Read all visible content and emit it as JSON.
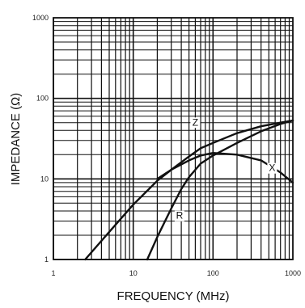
{
  "chart_data": {
    "type": "line",
    "title": "",
    "xlabel": "FREQUENCY (MHz)",
    "ylabel": "IMPEDANCE (Ω)",
    "xscale": "log",
    "yscale": "log",
    "xlim": [
      1,
      1000
    ],
    "ylim": [
      1,
      1000
    ],
    "grid": true,
    "legend": "none",
    "x_ticks": [
      "1",
      "10",
      "100",
      "1000"
    ],
    "y_ticks": [
      "1",
      "10",
      "100",
      "1000"
    ],
    "line_color": "#111111",
    "series": [
      {
        "name": "Z",
        "x": [
          2.5,
          5,
          10,
          20,
          30,
          50,
          70,
          100,
          200,
          400,
          700,
          1000
        ],
        "y": [
          1.0,
          2.2,
          4.8,
          9.5,
          13,
          19,
          24,
          28,
          37,
          45,
          50,
          53
        ]
      },
      {
        "name": "X",
        "x": [
          20,
          30,
          50,
          70,
          100,
          200,
          400,
          700,
          1000
        ],
        "y": [
          10,
          13,
          17,
          19.5,
          21,
          20,
          17,
          12,
          9
        ]
      },
      {
        "name": "R",
        "x": [
          15,
          20,
          30,
          40,
          50,
          70,
          100,
          200,
          400,
          700,
          1000
        ],
        "y": [
          1.0,
          1.9,
          4.3,
          7.5,
          10.5,
          15.5,
          19.5,
          28,
          39,
          48,
          53
        ]
      }
    ]
  }
}
